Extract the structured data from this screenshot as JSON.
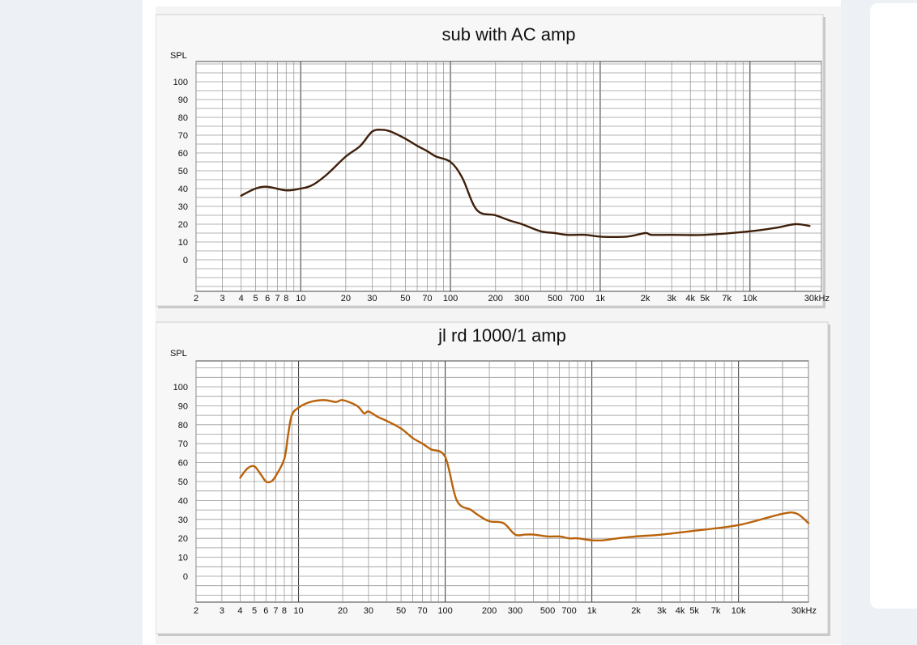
{
  "chart_data": [
    {
      "type": "line",
      "title": "sub with AC amp",
      "ylabel": "SPL",
      "xlabel": "",
      "x_scale": "log",
      "xlim": [
        2,
        30000
      ],
      "ylim": [
        0,
        100
      ],
      "grid": true,
      "x_tick_labels": [
        {
          "v": 2,
          "t": "2"
        },
        {
          "v": 3,
          "t": "3"
        },
        {
          "v": 4,
          "t": "4"
        },
        {
          "v": 5,
          "t": "5"
        },
        {
          "v": 6,
          "t": "6"
        },
        {
          "v": 7,
          "t": "7"
        },
        {
          "v": 8,
          "t": "8"
        },
        {
          "v": 10,
          "t": "10"
        },
        {
          "v": 20,
          "t": "20"
        },
        {
          "v": 30,
          "t": "30"
        },
        {
          "v": 50,
          "t": "50"
        },
        {
          "v": 70,
          "t": "70"
        },
        {
          "v": 100,
          "t": "100"
        },
        {
          "v": 200,
          "t": "200"
        },
        {
          "v": 300,
          "t": "300"
        },
        {
          "v": 500,
          "t": "500"
        },
        {
          "v": 700,
          "t": "700"
        },
        {
          "v": 1000,
          "t": "1k"
        },
        {
          "v": 2000,
          "t": "2k"
        },
        {
          "v": 3000,
          "t": "3k"
        },
        {
          "v": 4000,
          "t": "4k"
        },
        {
          "v": 5000,
          "t": "5k"
        },
        {
          "v": 7000,
          "t": "7k"
        },
        {
          "v": 10000,
          "t": "10k"
        },
        {
          "v": 30000,
          "t": "30kHz"
        }
      ],
      "y_tick_labels": [
        "100",
        "90",
        "80",
        "70",
        "60",
        "50",
        "40",
        "30",
        "20",
        "10",
        "0"
      ],
      "series": [
        {
          "color": "#3f1f0a",
          "x": [
            4,
            5,
            6,
            8,
            10,
            12,
            15,
            20,
            25,
            30,
            35,
            40,
            50,
            60,
            70,
            80,
            100,
            120,
            150,
            200,
            250,
            300,
            400,
            500,
            600,
            800,
            1000,
            1500,
            2000,
            2200,
            3000,
            5000,
            10000,
            15000,
            20000,
            25000
          ],
          "y": [
            36,
            40,
            41,
            39,
            40,
            42,
            48,
            58,
            64,
            72,
            73,
            72,
            68,
            64,
            61,
            58,
            55,
            46,
            28,
            25,
            22,
            20,
            16,
            15,
            14,
            14,
            13,
            13,
            15,
            14,
            14,
            14,
            16,
            18,
            20,
            19
          ]
        }
      ]
    },
    {
      "type": "line",
      "title": "jl rd 1000/1 amp",
      "ylabel": "SPL",
      "xlabel": "",
      "x_scale": "log",
      "xlim": [
        2,
        30000
      ],
      "ylim": [
        0,
        100
      ],
      "grid": true,
      "x_tick_labels": [
        {
          "v": 2,
          "t": "2"
        },
        {
          "v": 3,
          "t": "3"
        },
        {
          "v": 4,
          "t": "4"
        },
        {
          "v": 5,
          "t": "5"
        },
        {
          "v": 6,
          "t": "6"
        },
        {
          "v": 7,
          "t": "7"
        },
        {
          "v": 8,
          "t": "8"
        },
        {
          "v": 10,
          "t": "10"
        },
        {
          "v": 20,
          "t": "20"
        },
        {
          "v": 30,
          "t": "30"
        },
        {
          "v": 50,
          "t": "50"
        },
        {
          "v": 70,
          "t": "70"
        },
        {
          "v": 100,
          "t": "100"
        },
        {
          "v": 200,
          "t": "200"
        },
        {
          "v": 300,
          "t": "300"
        },
        {
          "v": 500,
          "t": "500"
        },
        {
          "v": 700,
          "t": "700"
        },
        {
          "v": 1000,
          "t": "1k"
        },
        {
          "v": 2000,
          "t": "2k"
        },
        {
          "v": 3000,
          "t": "3k"
        },
        {
          "v": 4000,
          "t": "4k"
        },
        {
          "v": 5000,
          "t": "5k"
        },
        {
          "v": 7000,
          "t": "7k"
        },
        {
          "v": 10000,
          "t": "10k"
        },
        {
          "v": 30000,
          "t": "30kHz"
        }
      ],
      "y_tick_labels": [
        "100",
        "90",
        "80",
        "70",
        "60",
        "50",
        "40",
        "30",
        "20",
        "10",
        "0"
      ],
      "series": [
        {
          "color": "#b9620a",
          "x": [
            4,
            4.5,
            5,
            5.5,
            6,
            6.5,
            7,
            8,
            8.5,
            9,
            10,
            12,
            15,
            18,
            20,
            25,
            28,
            30,
            35,
            40,
            50,
            60,
            70,
            80,
            100,
            120,
            150,
            170,
            200,
            250,
            300,
            350,
            400,
            500,
            600,
            700,
            800,
            1000,
            1200,
            1500,
            2000,
            3000,
            5000,
            10000,
            20000,
            25000,
            30000
          ],
          "y": [
            52,
            57,
            58,
            54,
            50,
            50,
            53,
            62,
            75,
            85,
            89,
            92,
            93,
            92,
            93,
            90,
            86,
            87,
            84,
            82,
            78,
            73,
            70,
            67,
            63,
            40,
            35,
            32,
            29,
            28,
            22,
            22,
            22,
            21,
            21,
            20,
            20,
            19,
            19,
            20,
            21,
            22,
            24,
            27,
            33,
            33,
            28
          ]
        }
      ]
    }
  ]
}
